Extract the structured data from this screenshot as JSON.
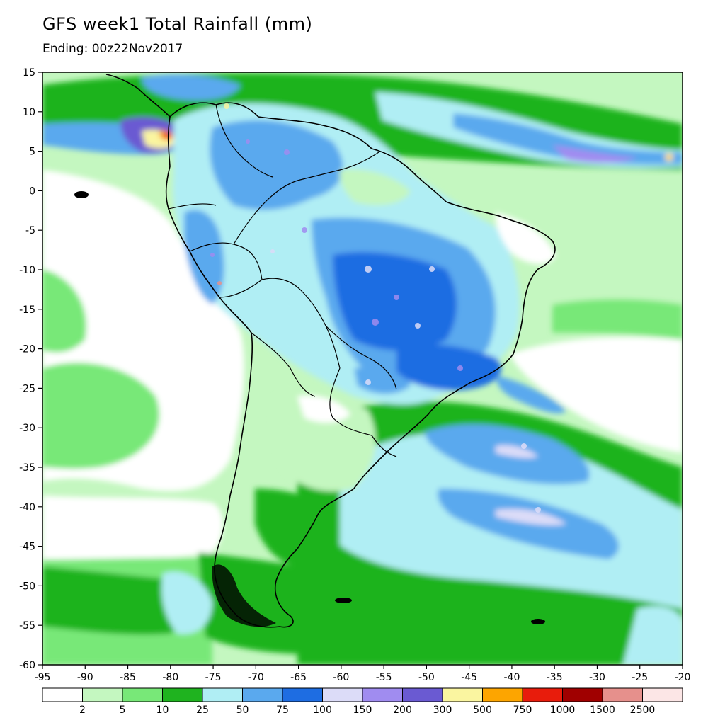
{
  "title": "GFS week1 Total Rainfall (mm)",
  "subtitle": "Ending: 00z22Nov2017",
  "map": {
    "lon_range": [
      -95,
      -20
    ],
    "lat_range": [
      -60,
      15
    ],
    "lon_ticks": [
      "-95",
      "-90",
      "-85",
      "-80",
      "-75",
      "-70",
      "-65",
      "-60",
      "-55",
      "-50",
      "-45",
      "-40",
      "-35",
      "-30",
      "-25",
      "-20"
    ],
    "lat_ticks": [
      "15",
      "10",
      "5",
      "0",
      "-5",
      "-10",
      "-15",
      "-20",
      "-25",
      "-30",
      "-35",
      "-40",
      "-45",
      "-50",
      "-55",
      "-60"
    ]
  },
  "colorbar": {
    "labels": [
      "2",
      "5",
      "10",
      "25",
      "50",
      "75",
      "100",
      "150",
      "200",
      "300",
      "500",
      "750",
      "1000",
      "1500",
      "2500"
    ],
    "colors": [
      "#ffffff",
      "#c4f7c0",
      "#78e878",
      "#1fb31f",
      "#b0eef4",
      "#5aa9ee",
      "#1e6de2",
      "#dcdcf8",
      "#a08cf0",
      "#6a5ad2",
      "#faf5a0",
      "#fda500",
      "#e81c0c",
      "#a00000",
      "#e6908c",
      "#fce6e6"
    ]
  }
}
